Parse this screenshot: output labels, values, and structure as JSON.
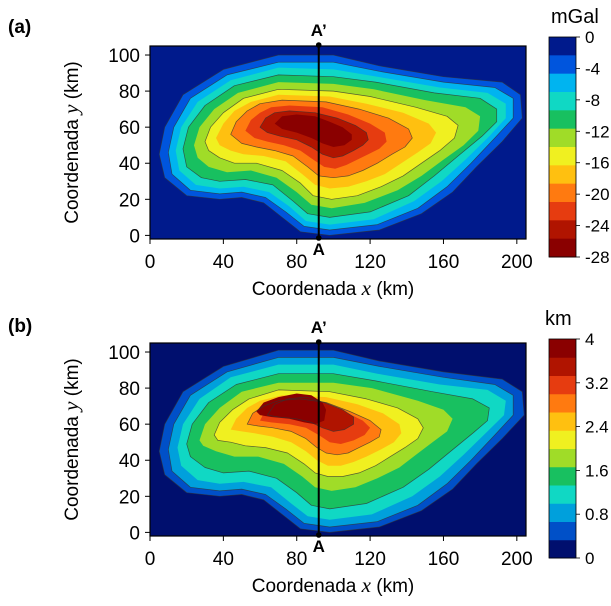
{
  "chart_data": [
    {
      "type": "heatmap",
      "panel_label": "(a)",
      "xlabel": "Coordenada x (km)",
      "ylabel": "Coordenada y (km)",
      "xticks": [
        0,
        40,
        80,
        120,
        160,
        200
      ],
      "yticks": [
        0,
        20,
        40,
        60,
        80,
        100
      ],
      "xlim": [
        0,
        205
      ],
      "ylim": [
        -2,
        105
      ],
      "colorbar": {
        "unit": "mGal",
        "range": [
          -28,
          0
        ],
        "ticks": [
          0,
          -4,
          -8,
          -12,
          -16,
          -20,
          -24,
          -28
        ],
        "colors": [
          "#001a8c",
          "#0055dd",
          "#00b4f0",
          "#10d8c4",
          "#18c060",
          "#a0dc28",
          "#f0f020",
          "#ffc010",
          "#ff7a10",
          "#e63c10",
          "#b01400",
          "#8a0000"
        ]
      },
      "profile": {
        "x": 92,
        "start_label": "A",
        "end_label": "A’"
      }
    },
    {
      "type": "heatmap",
      "panel_label": "(b)",
      "xlabel": "Coordenada x (km)",
      "ylabel": "Coordenada y (km)",
      "xticks": [
        0,
        40,
        80,
        120,
        160,
        200
      ],
      "yticks": [
        0,
        20,
        40,
        60,
        80,
        100
      ],
      "xlim": [
        0,
        205
      ],
      "ylim": [
        -2,
        105
      ],
      "colorbar": {
        "unit": "km",
        "range": [
          0,
          4
        ],
        "ticks": [
          4,
          3.2,
          2.4,
          1.6,
          0.8,
          0
        ],
        "colors": [
          "#000f6e",
          "#0050c8",
          "#00a0dc",
          "#10d8c4",
          "#18c060",
          "#a0dc28",
          "#f0f020",
          "#ffc010",
          "#ff7a10",
          "#e63c10",
          "#b01400",
          "#8a0000"
        ]
      },
      "profile": {
        "x": 92,
        "start_label": "A",
        "end_label": "A’"
      }
    }
  ]
}
